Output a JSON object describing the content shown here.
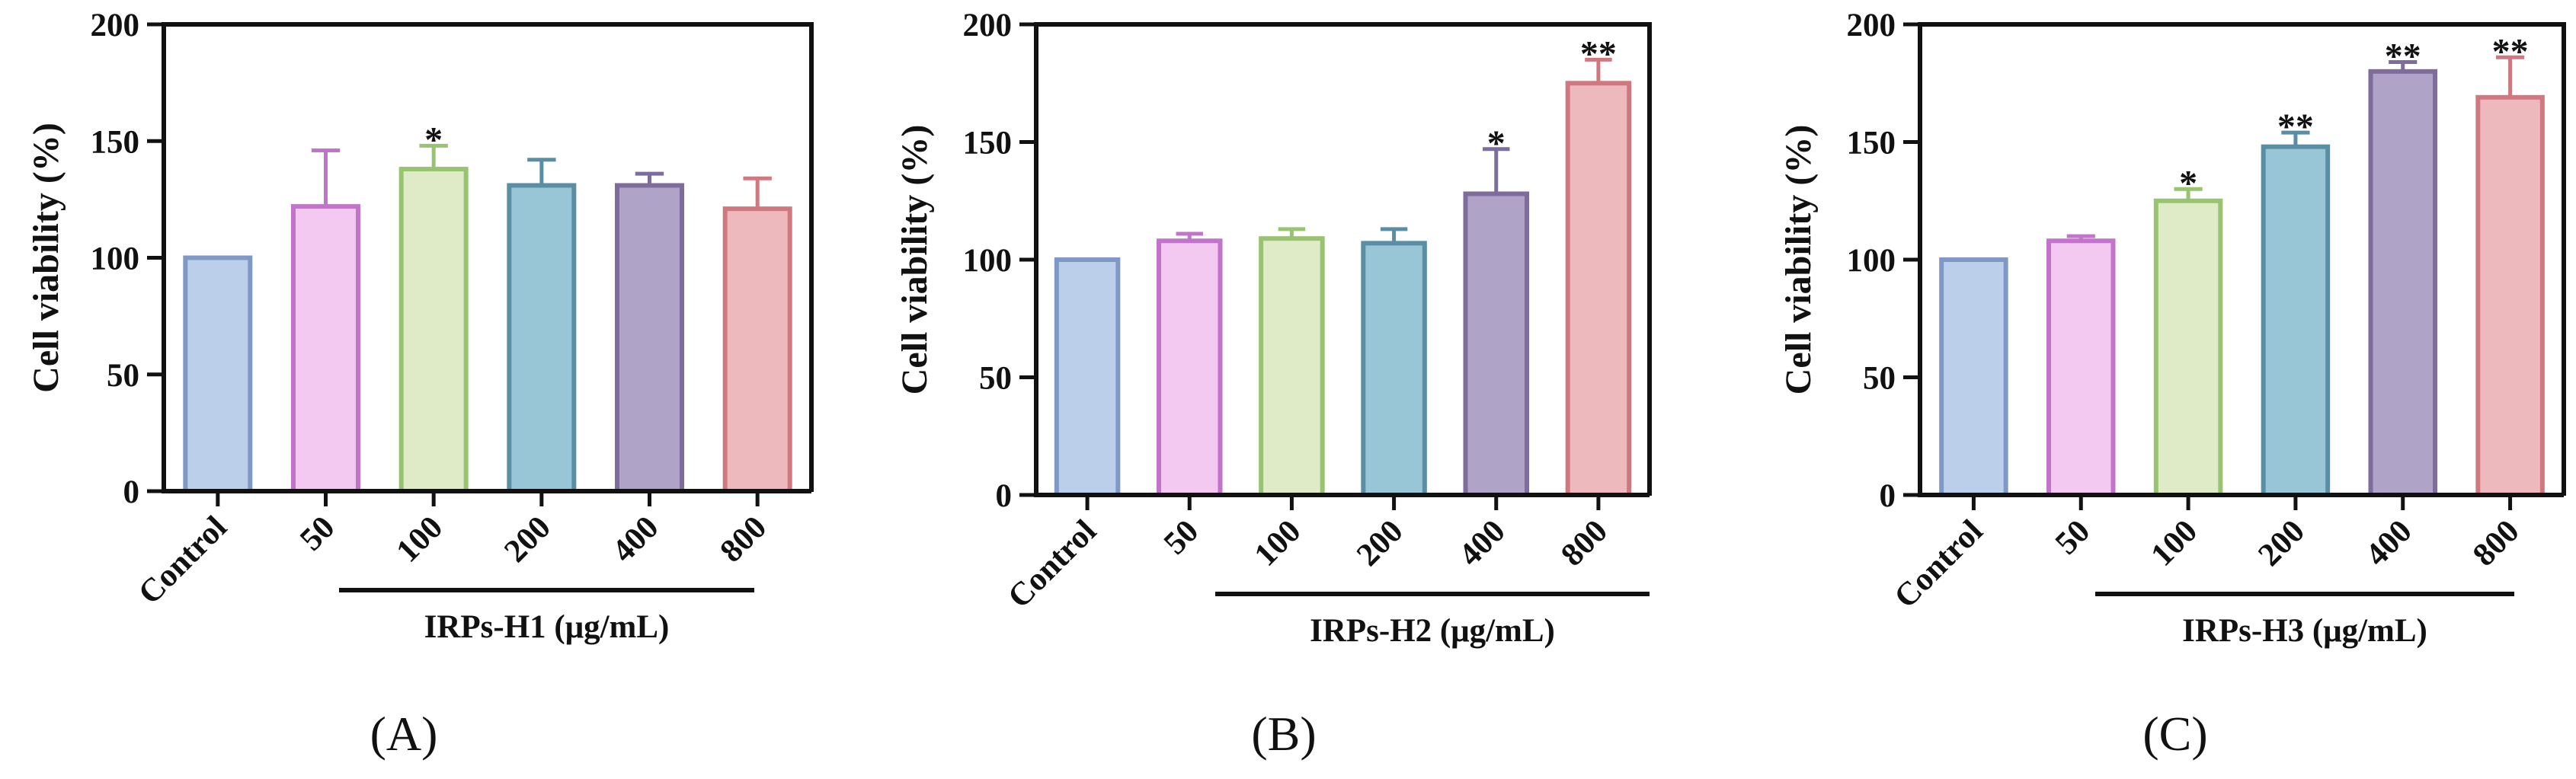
{
  "chart_data": [
    {
      "type": "bar",
      "panel_label": "(A)",
      "ylabel": "Cell viability (%)",
      "ylim": [
        0,
        200
      ],
      "yticks": [
        0,
        50,
        100,
        150,
        200
      ],
      "categories": [
        "Control",
        "50",
        "100",
        "200",
        "400",
        "800"
      ],
      "group_label": "IRPs-H1 (μg/mL)",
      "values": [
        100,
        122,
        138,
        131,
        131,
        121
      ],
      "errors": [
        0,
        24,
        10,
        11,
        5,
        13
      ],
      "significance": [
        "",
        "",
        "*",
        "",
        "",
        ""
      ],
      "colors": [
        "#bccfea",
        "#f3c9f2",
        "#dfeac6",
        "#98c6d7",
        "#afa4c8",
        "#eeb9bd"
      ],
      "edge_colors": [
        "#7f98c6",
        "#c274cb",
        "#98c472",
        "#5a8ea4",
        "#7d6c9c",
        "#d07880"
      ]
    },
    {
      "type": "bar",
      "panel_label": "(B)",
      "ylabel": "Cell viability (%)",
      "ylim": [
        0,
        200
      ],
      "yticks": [
        0,
        50,
        100,
        150,
        200
      ],
      "categories": [
        "Control",
        "50",
        "100",
        "200",
        "400",
        "800"
      ],
      "group_label": "IRPs-H2 (μg/mL)",
      "values": [
        100,
        108,
        109,
        107,
        128,
        175
      ],
      "errors": [
        0,
        3,
        4,
        6,
        19,
        10
      ],
      "significance": [
        "",
        "",
        "",
        "",
        "*",
        "**"
      ],
      "colors": [
        "#bccfea",
        "#f3c9f2",
        "#dfeac6",
        "#98c6d7",
        "#afa4c8",
        "#eeb9bd"
      ],
      "edge_colors": [
        "#7f98c6",
        "#c274cb",
        "#98c472",
        "#5a8ea4",
        "#7d6c9c",
        "#d07880"
      ]
    },
    {
      "type": "bar",
      "panel_label": "(C)",
      "ylabel": "Cell viability (%)",
      "ylim": [
        0,
        200
      ],
      "yticks": [
        0,
        50,
        100,
        150,
        200
      ],
      "categories": [
        "Control",
        "50",
        "100",
        "200",
        "400",
        "800"
      ],
      "group_label": "IRPs-H3 (μg/mL)",
      "values": [
        100,
        108,
        125,
        148,
        180,
        169
      ],
      "errors": [
        0,
        2,
        5,
        6,
        4,
        17
      ],
      "significance": [
        "",
        "",
        "*",
        "**",
        "**",
        "**"
      ],
      "colors": [
        "#bccfea",
        "#f3c9f2",
        "#dfeac6",
        "#98c6d7",
        "#afa4c8",
        "#eeb9bd"
      ],
      "edge_colors": [
        "#7f98c6",
        "#c274cb",
        "#98c472",
        "#5a8ea4",
        "#7d6c9c",
        "#d07880"
      ]
    }
  ]
}
